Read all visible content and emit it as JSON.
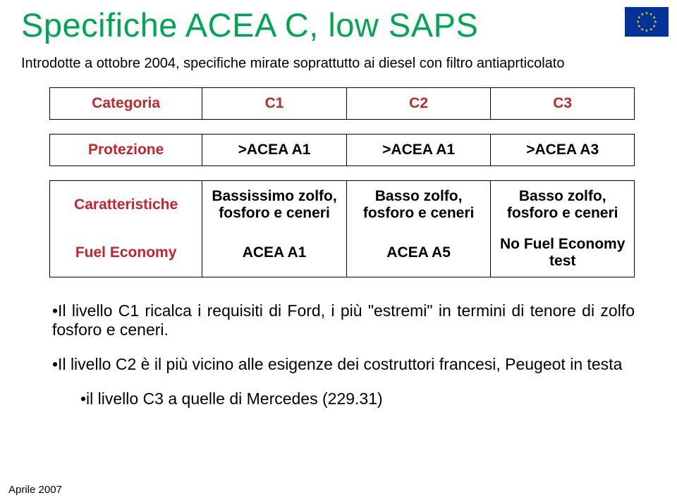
{
  "title": "Specifiche ACEA C, low SAPS",
  "subtitle": "Introdotte a ottobre 2004, specifiche mirate soprattutto ai diesel con filtro antiaprticolato",
  "table": {
    "header": {
      "label": "Categoria",
      "c1": "C1",
      "c2": "C2",
      "c3": "C3"
    },
    "row_protezione": {
      "label": "Protezione",
      "c1": ">ACEA A1",
      "c2": ">ACEA A1",
      "c3": ">ACEA A3"
    },
    "row_caratt": {
      "label": "Caratteristiche",
      "c1": "Bassissimo zolfo, fosforo e ceneri",
      "c2": "Basso zolfo, fosforo e ceneri",
      "c3": "Basso zolfo, fosforo e ceneri"
    },
    "row_fuel": {
      "label": "Fuel Economy",
      "c1": "ACEA  A1",
      "c2": "ACEA  A5",
      "c3": "No Fuel Economy test"
    }
  },
  "bullets": {
    "b1": "•Il livello C1 ricalca i requisiti di Ford, i più \"estremi\" in termini di tenore di zolfo fosforo e ceneri.",
    "b2": "•Il livello C2 è il più vicino alle esigenze dei costruttori francesi, Peugeot in  testa",
    "b3": "•il livello C3 a quelle di Mercedes (229.31)"
  },
  "footer": "Aprile 2007",
  "colors": {
    "title": "#00a651",
    "accent": "#c4252b",
    "text": "#000000",
    "bg": "#ffffff",
    "eu_blue": "#003399",
    "eu_gold": "#ffcc00"
  },
  "typography": {
    "title_fontsize": 47,
    "subtitle_fontsize": 20,
    "cell_fontsize": 21,
    "bullet_fontsize": 23,
    "footer_fontsize": 15,
    "font_family": "Arial"
  }
}
